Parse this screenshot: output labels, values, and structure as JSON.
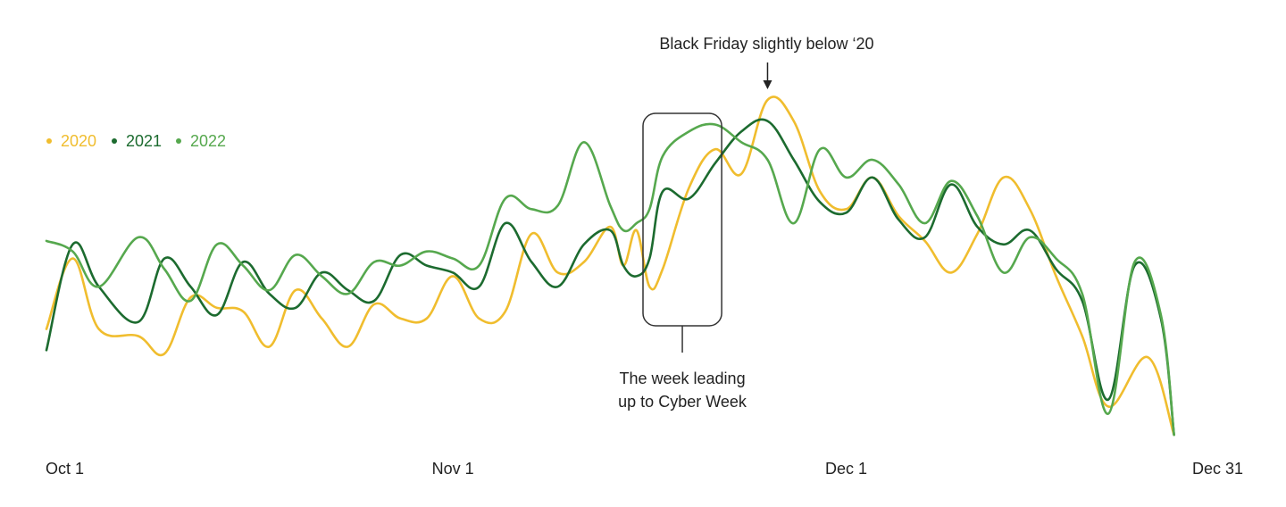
{
  "chart_data": {
    "type": "line",
    "title": "",
    "xlabel": "",
    "ylabel": "",
    "x_range": [
      "Oct 1",
      "Dec 31"
    ],
    "y_axis": "unlabeled relative index",
    "ylim": [
      0,
      100
    ],
    "grid": false,
    "legend_position": "top-left",
    "x_ticks": [
      {
        "label": "Oct 1",
        "day": 0
      },
      {
        "label": "Nov 1",
        "day": 31
      },
      {
        "label": "Dec 1",
        "day": 61
      },
      {
        "label": "Dec 31",
        "day": 91
      }
    ],
    "series": [
      {
        "name": "2020",
        "color": "#F0BD2E",
        "points": [
          [
            0,
            32
          ],
          [
            2,
            52
          ],
          [
            4,
            32
          ],
          [
            7,
            30
          ],
          [
            9,
            25
          ],
          [
            11,
            41
          ],
          [
            13,
            38
          ],
          [
            15,
            37
          ],
          [
            17,
            27
          ],
          [
            19,
            43
          ],
          [
            21,
            35
          ],
          [
            23,
            27
          ],
          [
            25,
            39
          ],
          [
            27,
            35
          ],
          [
            29,
            35
          ],
          [
            31,
            47
          ],
          [
            33,
            35
          ],
          [
            35,
            37
          ],
          [
            37,
            59
          ],
          [
            39,
            48
          ],
          [
            41,
            51
          ],
          [
            43,
            61
          ],
          [
            44,
            50
          ],
          [
            45,
            60
          ],
          [
            46,
            44
          ],
          [
            47,
            49
          ],
          [
            49,
            72
          ],
          [
            51,
            83
          ],
          [
            53,
            76
          ],
          [
            55,
            97
          ],
          [
            57,
            91
          ],
          [
            59,
            71
          ],
          [
            61,
            66
          ],
          [
            63,
            75
          ],
          [
            65,
            64
          ],
          [
            67,
            57
          ],
          [
            69,
            48
          ],
          [
            71,
            59
          ],
          [
            73,
            75
          ],
          [
            75,
            66
          ],
          [
            77,
            47
          ],
          [
            79,
            30
          ],
          [
            81,
            10
          ],
          [
            84,
            24
          ],
          [
            86,
            2
          ]
        ]
      },
      {
        "name": "2021",
        "color": "#1C6B2F",
        "points": [
          [
            0,
            26
          ],
          [
            2,
            56
          ],
          [
            4,
            44
          ],
          [
            7,
            34
          ],
          [
            9,
            52
          ],
          [
            11,
            44
          ],
          [
            13,
            36
          ],
          [
            15,
            51
          ],
          [
            17,
            42
          ],
          [
            19,
            38
          ],
          [
            21,
            48
          ],
          [
            23,
            43
          ],
          [
            25,
            40
          ],
          [
            27,
            53
          ],
          [
            29,
            50
          ],
          [
            31,
            48
          ],
          [
            33,
            44
          ],
          [
            35,
            62
          ],
          [
            37,
            51
          ],
          [
            39,
            44
          ],
          [
            41,
            56
          ],
          [
            43,
            60
          ],
          [
            44,
            50
          ],
          [
            45,
            47
          ],
          [
            46,
            52
          ],
          [
            47,
            71
          ],
          [
            49,
            69
          ],
          [
            51,
            79
          ],
          [
            53,
            88
          ],
          [
            55,
            91
          ],
          [
            57,
            80
          ],
          [
            59,
            68
          ],
          [
            61,
            65
          ],
          [
            63,
            75
          ],
          [
            65,
            63
          ],
          [
            67,
            58
          ],
          [
            69,
            73
          ],
          [
            71,
            61
          ],
          [
            73,
            56
          ],
          [
            75,
            60
          ],
          [
            77,
            49
          ],
          [
            79,
            40
          ],
          [
            81,
            12
          ],
          [
            83,
            50
          ],
          [
            85,
            35
          ],
          [
            86,
            2
          ]
        ]
      },
      {
        "name": "2022",
        "color": "#56A84E",
        "points": [
          [
            0,
            57
          ],
          [
            2,
            54
          ],
          [
            4,
            44
          ],
          [
            7,
            58
          ],
          [
            9,
            49
          ],
          [
            11,
            40
          ],
          [
            13,
            56
          ],
          [
            15,
            50
          ],
          [
            17,
            43
          ],
          [
            19,
            53
          ],
          [
            21,
            47
          ],
          [
            23,
            42
          ],
          [
            25,
            51
          ],
          [
            27,
            50
          ],
          [
            29,
            54
          ],
          [
            31,
            52
          ],
          [
            33,
            50
          ],
          [
            35,
            69
          ],
          [
            37,
            66
          ],
          [
            39,
            67
          ],
          [
            41,
            85
          ],
          [
            43,
            67
          ],
          [
            44,
            60
          ],
          [
            45,
            62
          ],
          [
            46,
            66
          ],
          [
            47,
            81
          ],
          [
            49,
            88
          ],
          [
            51,
            90
          ],
          [
            53,
            85
          ],
          [
            55,
            80
          ],
          [
            57,
            62
          ],
          [
            59,
            83
          ],
          [
            61,
            75
          ],
          [
            63,
            80
          ],
          [
            65,
            73
          ],
          [
            67,
            62
          ],
          [
            69,
            74
          ],
          [
            71,
            64
          ],
          [
            73,
            48
          ],
          [
            75,
            58
          ],
          [
            77,
            52
          ],
          [
            79,
            42
          ],
          [
            81,
            8
          ],
          [
            83,
            51
          ],
          [
            85,
            36
          ],
          [
            86,
            2
          ]
        ]
      }
    ],
    "annotations": [
      {
        "text": "Black Friday slightly below ‘20",
        "day": 55
      },
      {
        "text_line1": "The week leading",
        "text_line2": "up to Cyber Week",
        "day_start": 45.5,
        "day_end": 51.5
      }
    ]
  }
}
